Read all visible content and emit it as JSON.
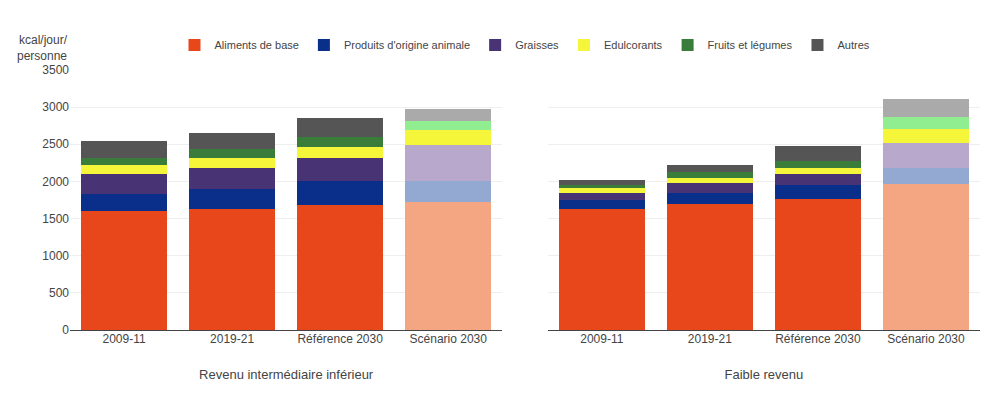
{
  "chart_data": [
    {
      "type": "bar",
      "stacked": true,
      "grid": true,
      "legend": "top",
      "xlabel": "Revenu intermédiaire inférieur",
      "ylabel": "kcal/jour/\npersonne",
      "categories": [
        "2009-11",
        "2019-21",
        "Référence 2030",
        "Scénario 2030"
      ],
      "ylim": [
        0,
        3500
      ],
      "yticks": [
        0,
        500,
        1000,
        1500,
        2000,
        2500,
        3000,
        3500
      ],
      "series": [
        {
          "name": "Aliments de base",
          "colors": [
            "#E8471C",
            "#E8471C",
            "#E8471C",
            "#F4A582"
          ],
          "values": [
            1600,
            1630,
            1680,
            1720
          ]
        },
        {
          "name": "Produits d'origine animale",
          "colors": [
            "#0A2F8A",
            "#0A2F8A",
            "#0A2F8A",
            "#93A9D1"
          ],
          "values": [
            230,
            270,
            320,
            280
          ]
        },
        {
          "name": "Graisses",
          "colors": [
            "#483475",
            "#483475",
            "#483475",
            "#B8A8CC"
          ],
          "values": [
            270,
            280,
            310,
            490
          ]
        },
        {
          "name": "Edulcorants",
          "colors": [
            "#F5F53A",
            "#F5F53A",
            "#F5F53A",
            "#F5F53A"
          ],
          "values": [
            120,
            130,
            160,
            200
          ]
        },
        {
          "name": "Fruits et légumes",
          "colors": [
            "#3A7D3A",
            "#3A7D3A",
            "#3A7D3A",
            "#90EE90"
          ],
          "values": [
            100,
            130,
            130,
            120
          ]
        },
        {
          "name": "Autres",
          "colors": [
            "#555555",
            "#555555",
            "#555555",
            "#AAAAAA"
          ],
          "values": [
            230,
            210,
            250,
            170
          ]
        }
      ]
    },
    {
      "type": "bar",
      "stacked": true,
      "grid": true,
      "tick_labels": "x",
      "xlabel": "Faible revenu",
      "categories": [
        "2009-11",
        "2019-21",
        "Référence 2030",
        "Scénario 2030"
      ],
      "ylim": [
        0,
        3500
      ],
      "yticks": [
        0,
        500,
        1000,
        1500,
        2000,
        2500,
        3000,
        3500
      ],
      "series": [
        {
          "name": "Aliments de base",
          "colors": [
            "#E8471C",
            "#E8471C",
            "#E8471C",
            "#F4A582"
          ],
          "values": [
            1630,
            1700,
            1770,
            1960
          ]
        },
        {
          "name": "Produits d'origine animale",
          "colors": [
            "#0A2F8A",
            "#0A2F8A",
            "#0A2F8A",
            "#93A9D1"
          ],
          "values": [
            120,
            150,
            180,
            220
          ]
        },
        {
          "name": "Graisses",
          "colors": [
            "#483475",
            "#483475",
            "#483475",
            "#B8A8CC"
          ],
          "values": [
            100,
            130,
            150,
            340
          ]
        },
        {
          "name": "Edulcorants",
          "colors": [
            "#F5F53A",
            "#F5F53A",
            "#F5F53A",
            "#F5F53A"
          ],
          "values": [
            55,
            70,
            80,
            180
          ]
        },
        {
          "name": "Fruits et légumes",
          "colors": [
            "#3A7D3A",
            "#3A7D3A",
            "#3A7D3A",
            "#90EE90"
          ],
          "values": [
            50,
            75,
            90,
            170
          ]
        },
        {
          "name": "Autres",
          "colors": [
            "#555555",
            "#555555",
            "#555555",
            "#AAAAAA"
          ],
          "values": [
            70,
            90,
            210,
            240
          ]
        }
      ]
    }
  ]
}
